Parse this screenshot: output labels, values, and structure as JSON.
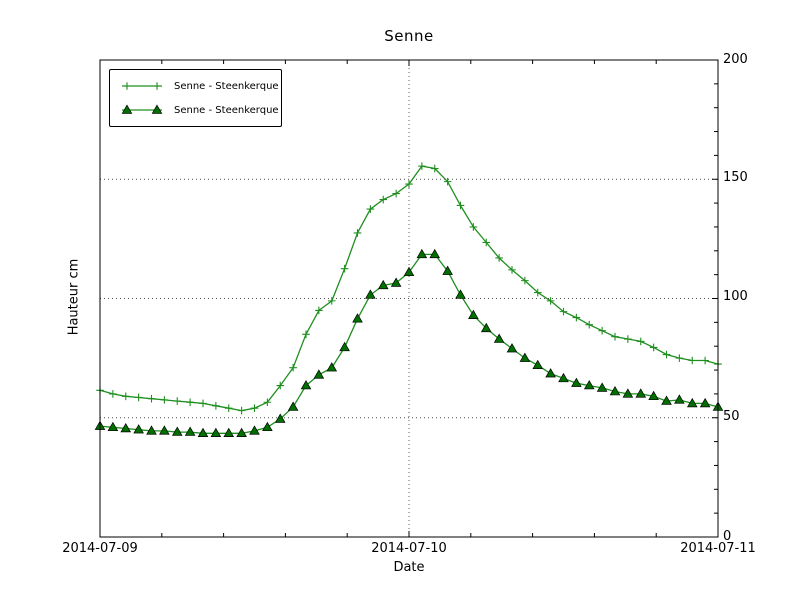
{
  "figure": {
    "background": "#ffffff"
  },
  "chart_data": {
    "type": "line",
    "title": "Senne",
    "xlabel": "Date",
    "ylabel": "Hauteur cm",
    "xtick_labels": [
      "2014-07-09",
      "2014-07-10",
      "2014-07-11"
    ],
    "x_major_tick_hours": [
      0,
      24,
      48
    ],
    "x_minor_tick_hours": [
      4.8,
      9.6,
      14.4,
      19.2,
      28.8,
      33.6,
      38.4,
      43.2
    ],
    "ylim": [
      0,
      200
    ],
    "yticks": [
      0,
      50,
      100,
      150,
      200
    ],
    "ytick_labels": [
      "0",
      "50",
      "100",
      "150",
      "200"
    ],
    "y_minor_step": 10,
    "grid": {
      "h_values": [
        50,
        100,
        150
      ],
      "v_hours": [
        24
      ],
      "style": "dotted"
    },
    "legend": {
      "position": "upper left"
    },
    "x_unit": "hours after 2014-07-09 00:00",
    "x": [
      0,
      1,
      2,
      3,
      4,
      5,
      6,
      7,
      8,
      9,
      10,
      11,
      12,
      13,
      14,
      15,
      16,
      17,
      18,
      19,
      20,
      21,
      22,
      23,
      24,
      25,
      26,
      27,
      28,
      29,
      30,
      31,
      32,
      33,
      34,
      35,
      36,
      37,
      38,
      39,
      40,
      41,
      42,
      43,
      44,
      45,
      46,
      47,
      48
    ],
    "series": [
      {
        "name": "Senne - Steenkerque",
        "marker": "plus",
        "color": "#1e8f1e",
        "values": [
          61.5,
          60,
          59,
          58.5,
          58,
          57.5,
          57,
          56.5,
          56,
          55,
          54,
          53,
          54,
          56.5,
          63.5,
          71,
          85,
          95,
          99,
          112.5,
          127.5,
          137.5,
          141.5,
          144,
          148,
          155.5,
          154.5,
          149,
          139,
          130,
          123.5,
          117,
          112,
          107.5,
          102.5,
          99,
          94.5,
          92,
          89,
          86.5,
          84,
          83,
          82,
          79.5,
          76.5,
          75,
          74,
          74,
          72.5
        ]
      },
      {
        "name": "Senne - Steenkerque",
        "marker": "triangle",
        "color": "#1e8f1e",
        "marker_fill": "#006f00",
        "marker_edge": "#000000",
        "values": [
          46.5,
          46,
          45.5,
          45,
          44.5,
          44.5,
          44,
          44,
          43.5,
          43.5,
          43.5,
          43.5,
          44.5,
          46,
          49.5,
          54.5,
          63.5,
          68,
          71,
          79.5,
          91.5,
          101.5,
          105.5,
          106.5,
          111,
          118.5,
          118.5,
          111.5,
          101.5,
          93,
          87.5,
          83,
          79,
          75,
          72,
          68.5,
          66.5,
          64.5,
          63.5,
          62.5,
          61,
          60,
          60,
          59,
          57,
          57.5,
          56,
          56,
          54.5
        ]
      }
    ]
  }
}
